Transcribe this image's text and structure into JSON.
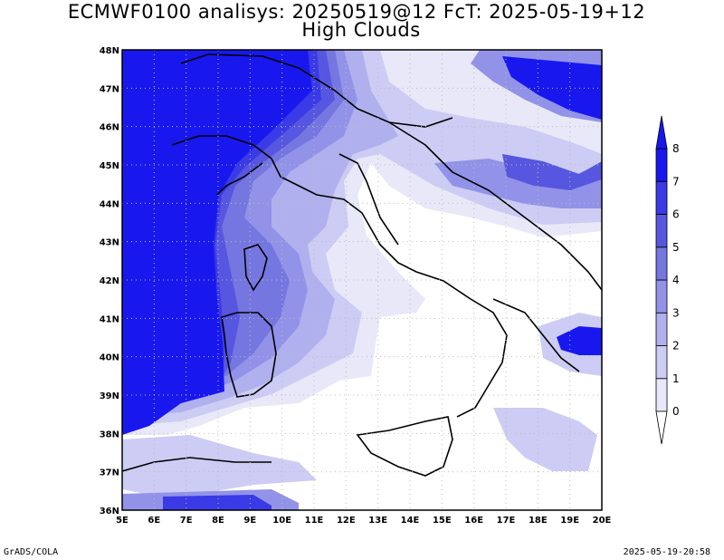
{
  "title": {
    "line1": "ECMWF0100 analisys: 20250519@12 FcT: 2025-05-19+12",
    "line2": "High Clouds"
  },
  "map": {
    "lon_labels": [
      "5E",
      "6E",
      "7E",
      "8E",
      "9E",
      "10E",
      "11E",
      "12E",
      "13E",
      "14E",
      "15E",
      "16E",
      "17E",
      "18E",
      "19E",
      "20E"
    ],
    "lat_labels": [
      "48N",
      "47N",
      "46N",
      "45N",
      "44N",
      "43N",
      "42N",
      "41N",
      "40N",
      "39N",
      "38N",
      "37N",
      "36N"
    ],
    "lon_range": [
      5,
      20
    ],
    "lat_range": [
      36,
      48
    ],
    "grid": "dotted"
  },
  "colorbar": {
    "labels": [
      "0",
      "1",
      "2",
      "3",
      "4",
      "5",
      "6",
      "7",
      "8"
    ],
    "colors": [
      "#e8e8f8",
      "#ccccf4",
      "#b0b0ee",
      "#9292e8",
      "#7676e0",
      "#5656e0",
      "#3a3ae6",
      "#1818ee"
    ],
    "arrows": [
      "below-0",
      "above-8"
    ]
  },
  "colors": {
    "land_outline": "#000000",
    "clear": "#ffffff",
    "max_cloud": "#1818ee"
  },
  "footer": {
    "left": "GrADS/COLA",
    "right": "2025-05-19-20:58"
  }
}
